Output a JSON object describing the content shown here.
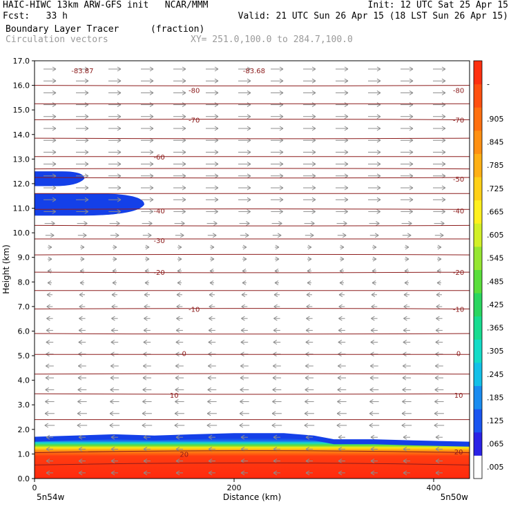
{
  "header": {
    "line1_left": "HAIC-HIWC 13km ARW-GFS init   NCAR/MMM",
    "line1_right": "Init: 12 UTC Sat 25 Apr 15",
    "line2_left": "Fcst:   33 h",
    "line2_right": "Valid: 21 UTC Sun 26 Apr 15 (18 LST Sun 26 Apr 15)",
    "field_name": "Boundary Layer Tracer",
    "field_units": "(fraction)",
    "vector_name": "Circulation vectors",
    "xy_range": "XY= 251.0,100.0 to 284.7,100.0"
  },
  "colors": {
    "contour": "#8b1a1a",
    "vector": "#8c8c8c",
    "tracer_low": "#1444e8",
    "tracer_high": "#f22a10"
  },
  "chart_data": {
    "type": "heatmap",
    "title": "Boundary Layer Tracer",
    "units": "(fraction)",
    "xlabel": "Distance (km)",
    "ylabel": "Height (km)",
    "xlim": [
      0,
      436
    ],
    "ylim": [
      0,
      17
    ],
    "x_ticks": [
      0,
      200,
      400
    ],
    "y_ticks": [
      "0.0",
      "1.0",
      "2.0",
      "3.0",
      "4.0",
      "5.0",
      "6.0",
      "7.0",
      "8.0",
      "9.0",
      "10.0",
      "11.0",
      "12.0",
      "13.0",
      "14.0",
      "15.0",
      "16.0",
      "17.0"
    ],
    "x_end_labels": {
      "left": "5n54w",
      "right": "5n50w"
    },
    "colorbar_labels": [
      ".005",
      ".065",
      ".125",
      ".185",
      ".245",
      ".305",
      ".365",
      ".425",
      ".485",
      ".545",
      ".605",
      ".665",
      ".725",
      ".785",
      ".845",
      ".905",
      "-"
    ],
    "temperature_contours": [
      {
        "level": "-83.87",
        "x": 48,
        "y": 16.6
      },
      {
        "level": "-83.68",
        "x": 220,
        "y": 16.6
      },
      {
        "level": "-80",
        "x": 160,
        "y": 15.8
      },
      {
        "level": "-80",
        "x": 425,
        "y": 15.8
      },
      {
        "level": "-70",
        "x": 160,
        "y": 14.6
      },
      {
        "level": "-70",
        "x": 425,
        "y": 14.6
      },
      {
        "level": "-60",
        "x": 125,
        "y": 13.1
      },
      {
        "level": "-50",
        "x": 425,
        "y": 12.2
      },
      {
        "level": "-40",
        "x": 125,
        "y": 10.9
      },
      {
        "level": "-40",
        "x": 425,
        "y": 10.9
      },
      {
        "level": "-30",
        "x": 125,
        "y": 9.7
      },
      {
        "level": "-20",
        "x": 125,
        "y": 8.4
      },
      {
        "level": "-20",
        "x": 425,
        "y": 8.4
      },
      {
        "level": "-10",
        "x": 160,
        "y": 6.9
      },
      {
        "level": "-10",
        "x": 425,
        "y": 6.9
      },
      {
        "level": "0",
        "x": 150,
        "y": 5.1
      },
      {
        "level": "0",
        "x": 425,
        "y": 5.1
      },
      {
        "level": "10",
        "x": 140,
        "y": 3.4
      },
      {
        "level": "10",
        "x": 425,
        "y": 3.4
      },
      {
        "level": "20",
        "x": 150,
        "y": 1.0
      },
      {
        "level": "20",
        "x": 425,
        "y": 1.1
      }
    ],
    "contour_heights_km": [
      16.0,
      15.25,
      14.6,
      13.85,
      13.1,
      12.6,
      12.25,
      11.6,
      10.95,
      10.3,
      9.75,
      9.1,
      8.4,
      7.65,
      6.9,
      5.9,
      5.05,
      4.25,
      3.45,
      2.4,
      1.05,
      0.55
    ],
    "tracer_regions": [
      {
        "name": "boundary-layer",
        "top_profile_km": [
          [
            0,
            1.7
          ],
          [
            40,
            1.75
          ],
          [
            80,
            1.8
          ],
          [
            120,
            1.75
          ],
          [
            160,
            1.8
          ],
          [
            200,
            1.85
          ],
          [
            250,
            1.85
          ],
          [
            280,
            1.75
          ],
          [
            300,
            1.6
          ],
          [
            340,
            1.6
          ],
          [
            380,
            1.55
          ],
          [
            436,
            1.5
          ]
        ]
      },
      {
        "name": "upper-layer-12km",
        "x_km": [
          0,
          50
        ],
        "z_km": [
          11.9,
          12.5
        ]
      },
      {
        "name": "upper-layer-11km",
        "x_km": [
          0,
          110
        ],
        "z_km": [
          10.7,
          11.6
        ]
      }
    ],
    "vector_direction_by_height": [
      {
        "z_range_km": [
          9.5,
          17
        ],
        "direction": "east"
      },
      {
        "z_range_km": [
          7.5,
          9.5
        ],
        "direction": "weak"
      },
      {
        "z_range_km": [
          0,
          7.5
        ],
        "direction": "west"
      }
    ]
  }
}
